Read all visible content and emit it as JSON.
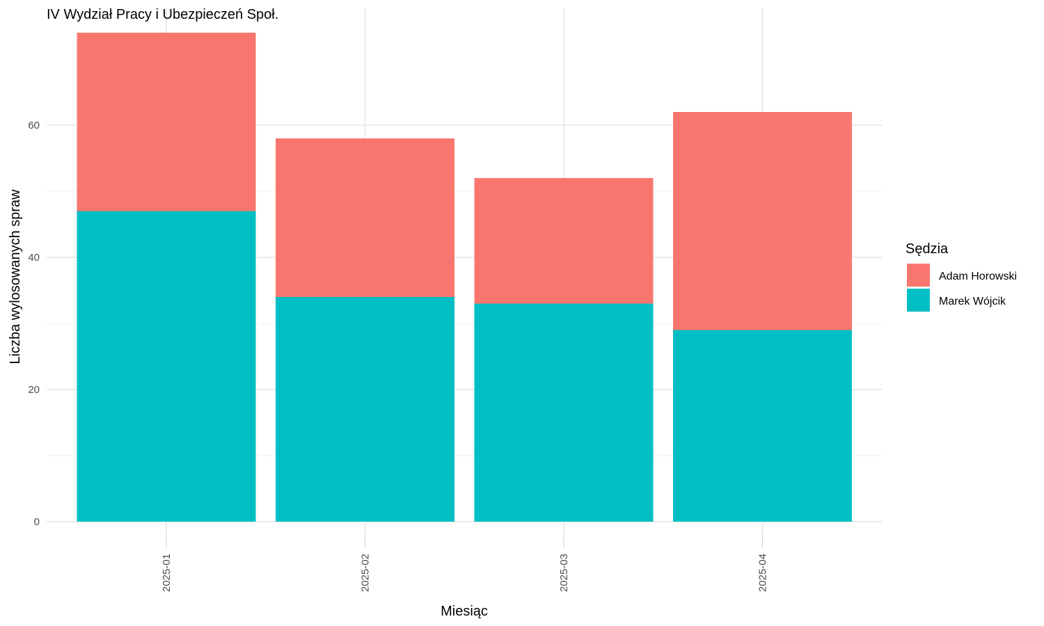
{
  "chart_data": {
    "type": "bar",
    "stacked": true,
    "title": "IV Wydział Pracy i Ubezpieczeń Społ.",
    "xlabel": "Miesiąc",
    "ylabel": "Liczba wylosowanych spraw",
    "categories": [
      "2025-01",
      "2025-02",
      "2025-03",
      "2025-04"
    ],
    "series": [
      {
        "name": "Marek Wójcik",
        "color": "#00BFC4",
        "values": [
          47,
          34,
          33,
          29
        ]
      },
      {
        "name": "Adam Horowski",
        "color": "#F8766D",
        "values": [
          27,
          24,
          19,
          33
        ]
      }
    ],
    "ylim": [
      0,
      77.7
    ],
    "yticks": [
      0,
      20,
      40,
      60
    ],
    "grid": true,
    "legend": {
      "title": "Sędzia",
      "position": "right",
      "order": [
        "Adam Horowski",
        "Marek Wójcik"
      ]
    }
  }
}
